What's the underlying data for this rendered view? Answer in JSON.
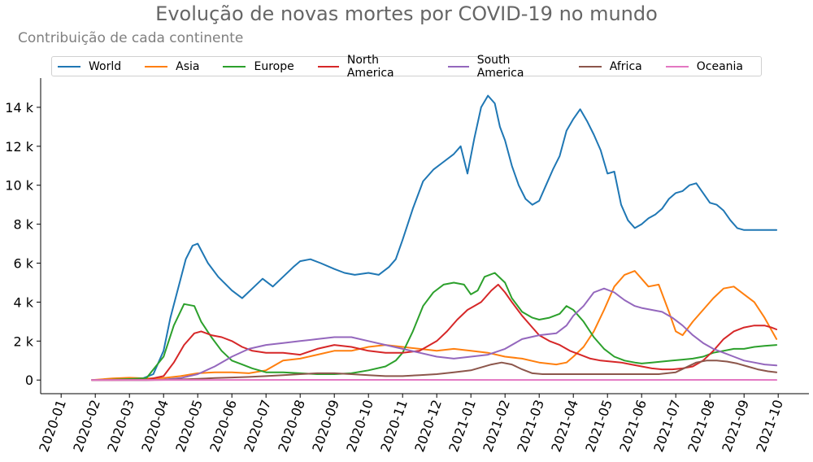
{
  "chart_data": {
    "type": "line",
    "title": "Evolução de novas mortes por COVID-19 no mundo",
    "subtitle": "Contribuição de cada continente",
    "xlabel": "",
    "ylabel": "",
    "ylim": [
      -700,
      15500
    ],
    "yticks": [
      0,
      2000,
      4000,
      6000,
      8000,
      10000,
      12000,
      14000
    ],
    "ytick_labels": [
      "0",
      "2 k",
      "4 k",
      "6 k",
      "8 k",
      "10 k",
      "12 k",
      "14 k"
    ],
    "xticks": [
      "2020-01",
      "2020-02",
      "2020-03",
      "2020-04",
      "2020-05",
      "2020-06",
      "2020-07",
      "2020-08",
      "2020-09",
      "2020-10",
      "2020-11",
      "2020-12",
      "2021-01",
      "2021-02",
      "2021-03",
      "2021-04",
      "2021-05",
      "2021-06",
      "2021-07",
      "2021-08",
      "2021-09",
      "2021-10"
    ],
    "x_range_months": [
      -0.6,
      21.9
    ],
    "series": [
      {
        "name": "World",
        "color": "#1f77b4",
        "x": [
          0.9,
          1.5,
          2.0,
          2.4,
          2.7,
          3.0,
          3.2,
          3.5,
          3.65,
          3.85,
          4.0,
          4.3,
          4.6,
          5.0,
          5.3,
          5.6,
          5.9,
          6.2,
          6.5,
          6.8,
          7.0,
          7.3,
          7.6,
          8.0,
          8.3,
          8.6,
          9.0,
          9.3,
          9.6,
          9.8,
          10.0,
          10.3,
          10.6,
          10.9,
          11.2,
          11.5,
          11.7,
          11.9,
          12.1,
          12.3,
          12.5,
          12.7,
          12.85,
          13.0,
          13.2,
          13.4,
          13.6,
          13.8,
          14.0,
          14.2,
          14.4,
          14.6,
          14.8,
          15.0,
          15.2,
          15.4,
          15.6,
          15.8,
          16.0,
          16.2,
          16.4,
          16.6,
          16.8,
          17.0,
          17.2,
          17.4,
          17.6,
          17.8,
          18.0,
          18.2,
          18.4,
          18.6,
          18.8,
          19.0,
          19.2,
          19.4,
          19.6,
          19.8,
          20.0,
          20.2,
          20.4,
          20.6,
          20.8,
          20.95
        ],
        "values": [
          0,
          30,
          60,
          90,
          300,
          1500,
          3200,
          5200,
          6200,
          6900,
          7000,
          6000,
          5300,
          4600,
          4200,
          4700,
          5200,
          4800,
          5300,
          5800,
          6100,
          6200,
          6000,
          5700,
          5500,
          5400,
          5500,
          5400,
          5800,
          6200,
          7200,
          8800,
          10200,
          10800,
          11200,
          11600,
          12000,
          10600,
          12400,
          14000,
          14600,
          14200,
          13000,
          12300,
          11000,
          10000,
          9300,
          9000,
          9200,
          10000,
          10800,
          11500,
          12800,
          13400,
          13900,
          13300,
          12600,
          11800,
          10600,
          10700,
          9000,
          8200,
          7800,
          8000,
          8300,
          8500,
          8800,
          9300,
          9600,
          9700,
          10000,
          10100,
          9600,
          9100,
          9000,
          8700,
          8200,
          7800,
          7700,
          7700,
          7700,
          7700,
          7700,
          7700
        ]
      },
      {
        "name": "Asia",
        "color": "#ff7f0e",
        "x": [
          0.9,
          1.5,
          2.0,
          2.5,
          3.0,
          3.5,
          4.0,
          4.5,
          5.0,
          5.5,
          6.0,
          6.5,
          7.0,
          7.5,
          8.0,
          8.5,
          9.0,
          9.5,
          10.0,
          10.5,
          11.0,
          11.5,
          12.0,
          12.5,
          13.0,
          13.5,
          14.0,
          14.5,
          14.8,
          15.0,
          15.3,
          15.6,
          15.9,
          16.2,
          16.5,
          16.8,
          17.0,
          17.2,
          17.5,
          17.8,
          18.0,
          18.2,
          18.5,
          18.8,
          19.1,
          19.4,
          19.7,
          20.0,
          20.3,
          20.6,
          20.95
        ],
        "values": [
          0,
          80,
          120,
          80,
          100,
          200,
          350,
          400,
          400,
          350,
          500,
          1000,
          1100,
          1300,
          1500,
          1500,
          1700,
          1800,
          1700,
          1600,
          1500,
          1600,
          1500,
          1400,
          1200,
          1100,
          900,
          800,
          900,
          1200,
          1700,
          2500,
          3600,
          4800,
          5400,
          5600,
          5200,
          4800,
          4900,
          3500,
          2500,
          2300,
          3000,
          3600,
          4200,
          4700,
          4800,
          4400,
          4000,
          3200,
          2100
        ]
      },
      {
        "name": "Europe",
        "color": "#2ca02c",
        "x": [
          0.9,
          1.5,
          2.0,
          2.5,
          3.0,
          3.3,
          3.6,
          3.9,
          4.1,
          4.4,
          4.7,
          5.0,
          5.3,
          5.6,
          6.0,
          6.5,
          7.0,
          7.5,
          8.0,
          8.5,
          9.0,
          9.5,
          9.8,
          10.0,
          10.3,
          10.6,
          10.9,
          11.2,
          11.5,
          11.8,
          12.0,
          12.2,
          12.4,
          12.7,
          13.0,
          13.2,
          13.5,
          13.8,
          14.0,
          14.3,
          14.6,
          14.8,
          15.0,
          15.3,
          15.6,
          15.9,
          16.2,
          16.5,
          16.8,
          17.0,
          17.3,
          17.6,
          17.9,
          18.2,
          18.5,
          18.8,
          19.1,
          19.4,
          19.7,
          20.0,
          20.3,
          20.6,
          20.95
        ],
        "values": [
          0,
          20,
          50,
          100,
          1200,
          2800,
          3900,
          3800,
          3000,
          2200,
          1500,
          1000,
          800,
          600,
          400,
          400,
          350,
          300,
          300,
          350,
          500,
          700,
          1000,
          1400,
          2500,
          3800,
          4500,
          4900,
          5000,
          4900,
          4400,
          4600,
          5300,
          5500,
          5000,
          4200,
          3500,
          3200,
          3100,
          3200,
          3400,
          3800,
          3600,
          3000,
          2200,
          1600,
          1200,
          1000,
          900,
          850,
          900,
          950,
          1000,
          1050,
          1100,
          1200,
          1400,
          1500,
          1600,
          1600,
          1700,
          1750,
          1800
        ]
      },
      {
        "name": "North America",
        "color": "#d62728",
        "x": [
          0.9,
          1.5,
          2.0,
          2.5,
          3.0,
          3.3,
          3.6,
          3.9,
          4.1,
          4.4,
          4.7,
          5.0,
          5.3,
          5.6,
          6.0,
          6.5,
          7.0,
          7.5,
          8.0,
          8.5,
          9.0,
          9.5,
          10.0,
          10.5,
          11.0,
          11.3,
          11.6,
          11.9,
          12.1,
          12.3,
          12.6,
          12.8,
          13.0,
          13.2,
          13.5,
          13.8,
          14.0,
          14.3,
          14.6,
          14.9,
          15.2,
          15.5,
          15.8,
          16.1,
          16.4,
          16.7,
          17.0,
          17.3,
          17.6,
          17.9,
          18.2,
          18.5,
          18.8,
          19.1,
          19.4,
          19.7,
          20.0,
          20.3,
          20.6,
          20.8,
          20.95
        ],
        "values": [
          0,
          0,
          10,
          20,
          200,
          900,
          1800,
          2400,
          2500,
          2300,
          2200,
          2000,
          1700,
          1500,
          1400,
          1400,
          1300,
          1600,
          1800,
          1700,
          1500,
          1400,
          1400,
          1500,
          2000,
          2500,
          3100,
          3600,
          3800,
          4000,
          4600,
          4900,
          4500,
          4000,
          3300,
          2700,
          2300,
          2000,
          1800,
          1500,
          1300,
          1100,
          1000,
          950,
          900,
          800,
          700,
          600,
          550,
          550,
          600,
          700,
          1000,
          1500,
          2100,
          2500,
          2700,
          2800,
          2800,
          2700,
          2600
        ]
      },
      {
        "name": "South America",
        "color": "#9467bd",
        "x": [
          0.9,
          1.5,
          2.0,
          2.5,
          3.0,
          3.5,
          4.0,
          4.5,
          5.0,
          5.5,
          6.0,
          6.5,
          7.0,
          7.5,
          8.0,
          8.5,
          9.0,
          9.5,
          10.0,
          10.5,
          11.0,
          11.5,
          12.0,
          12.5,
          13.0,
          13.5,
          14.0,
          14.5,
          14.8,
          15.0,
          15.3,
          15.6,
          15.9,
          16.2,
          16.5,
          16.8,
          17.0,
          17.3,
          17.6,
          17.9,
          18.2,
          18.5,
          18.8,
          19.1,
          19.4,
          19.7,
          20.0,
          20.3,
          20.6,
          20.95
        ],
        "values": [
          0,
          0,
          0,
          0,
          20,
          100,
          300,
          700,
          1200,
          1600,
          1800,
          1900,
          2000,
          2100,
          2200,
          2200,
          2000,
          1800,
          1600,
          1400,
          1200,
          1100,
          1200,
          1300,
          1600,
          2100,
          2300,
          2400,
          2800,
          3300,
          3800,
          4500,
          4700,
          4500,
          4100,
          3800,
          3700,
          3600,
          3500,
          3200,
          2800,
          2300,
          1900,
          1600,
          1400,
          1200,
          1000,
          900,
          800,
          750
        ]
      },
      {
        "name": "Africa",
        "color": "#8c564b",
        "x": [
          0.9,
          1.5,
          2.0,
          2.5,
          3.0,
          3.5,
          4.0,
          4.5,
          5.0,
          5.5,
          6.0,
          6.5,
          7.0,
          7.5,
          8.0,
          8.5,
          9.0,
          9.5,
          10.0,
          10.5,
          11.0,
          11.5,
          12.0,
          12.3,
          12.6,
          12.9,
          13.2,
          13.5,
          13.8,
          14.1,
          14.5,
          15.0,
          15.5,
          16.0,
          16.5,
          17.0,
          17.5,
          18.0,
          18.3,
          18.6,
          18.9,
          19.2,
          19.5,
          19.8,
          20.1,
          20.4,
          20.7,
          20.95
        ],
        "values": [
          0,
          0,
          0,
          0,
          10,
          30,
          60,
          100,
          130,
          160,
          200,
          250,
          300,
          350,
          350,
          300,
          250,
          200,
          200,
          250,
          300,
          400,
          500,
          650,
          800,
          900,
          800,
          550,
          350,
          300,
          300,
          300,
          300,
          300,
          300,
          300,
          300,
          400,
          650,
          900,
          1000,
          1000,
          950,
          850,
          700,
          550,
          450,
          400
        ]
      },
      {
        "name": "Oceania",
        "color": "#e377c2",
        "x": [
          0.9,
          5.0,
          10.0,
          15.0,
          20.0,
          20.95
        ],
        "values": [
          0,
          5,
          10,
          5,
          10,
          5
        ]
      }
    ]
  }
}
